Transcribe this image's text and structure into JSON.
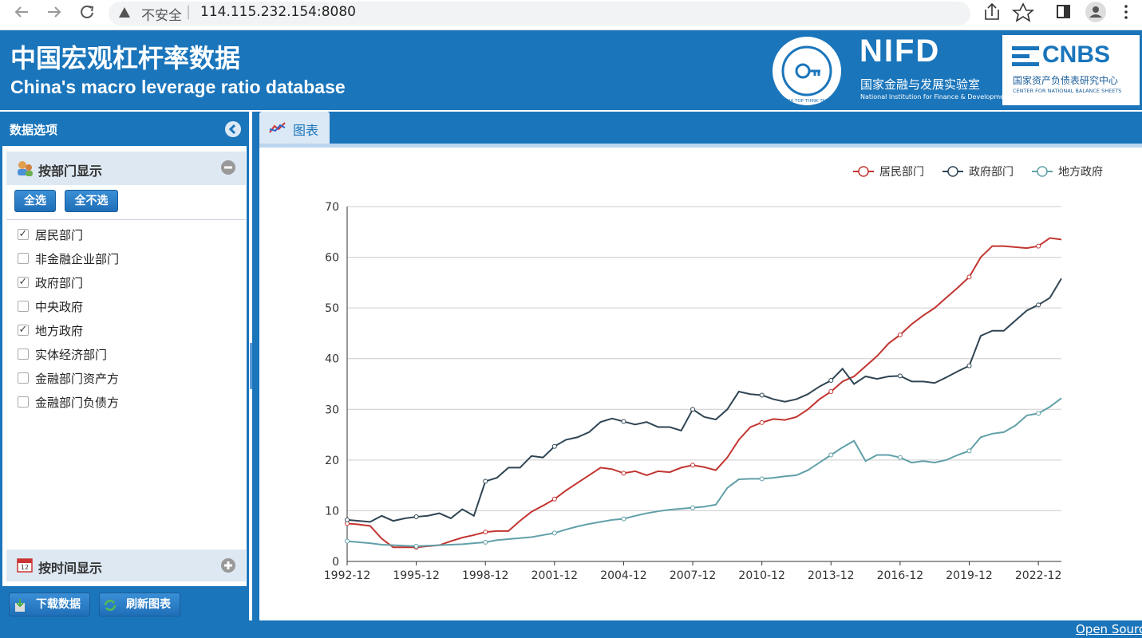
{
  "browser": {
    "security": "不安全",
    "url": "114.115.232.154:8080"
  },
  "header": {
    "title": "中国宏观杠杆率数据",
    "subtitle": "China's macro leverage ratio database",
    "think_tank": "CHINA TOP THINK TANKS",
    "nifd": {
      "name": "NIFD",
      "cn": "国家金融与发展实验室",
      "en": "National Institution for Finance & Development"
    },
    "cnbs": {
      "name": "CNBS",
      "cn": "国家资产负债表研究中心",
      "en": "CENTER FOR NATIONAL BALANCE SHEETS"
    }
  },
  "sidebar": {
    "title": "数据选项",
    "section_sector": "按部门显示",
    "select_buttons": [
      "全选",
      "全不选"
    ],
    "options": [
      {
        "label": "居民部门",
        "checked": true
      },
      {
        "label": "非金融企业部门",
        "checked": false
      },
      {
        "label": "政府部门",
        "checked": true
      },
      {
        "label": "中央政府",
        "checked": false
      },
      {
        "label": "地方政府",
        "checked": true
      },
      {
        "label": "实体经济部门",
        "checked": false
      },
      {
        "label": "金融部门资产方",
        "checked": false
      },
      {
        "label": "金融部门负债方",
        "checked": false
      }
    ],
    "section_time": "按时间显示",
    "action_buttons": [
      "下载数据",
      "刷新图表"
    ]
  },
  "tab": "图表",
  "footer": {
    "link": "Open Source"
  },
  "chart_data": {
    "type": "line",
    "categories": [
      "1992-12",
      null,
      null,
      null,
      null,
      null,
      "1995-12",
      null,
      null,
      null,
      null,
      null,
      "1998-12",
      null,
      null,
      null,
      null,
      null,
      "2001-12",
      null,
      null,
      null,
      null,
      null,
      "2004-12",
      null,
      null,
      null,
      null,
      null,
      "2007-12",
      null,
      null,
      null,
      null,
      null,
      "2010-12",
      null,
      null,
      null,
      null,
      null,
      "2013-12",
      null,
      null,
      null,
      null,
      null,
      "2016-12",
      null,
      null,
      null,
      null,
      null,
      "2019-12",
      null,
      null,
      null,
      null,
      null,
      "2022-12",
      null,
      null
    ],
    "series": [
      {
        "name": "居民部门",
        "color": "#c23531",
        "values": [
          7.5,
          7.3,
          7.0,
          4.5,
          2.8,
          2.8,
          2.8,
          3.0,
          3.2,
          4.0,
          4.7,
          5.2,
          5.8,
          6.0,
          6.0,
          8.0,
          9.8,
          11.0,
          12.3,
          14.0,
          15.5,
          17.0,
          18.5,
          18.2,
          17.4,
          17.8,
          17.0,
          17.8,
          17.6,
          18.5,
          19.0,
          18.6,
          18.0,
          20.5,
          24.0,
          26.5,
          27.4,
          28.1,
          27.9,
          28.5,
          30.0,
          32.0,
          33.5,
          35.5,
          36.5,
          38.5,
          40.5,
          43.0,
          44.7,
          46.8,
          48.5,
          50.0,
          52.0,
          54.0,
          56.1,
          60.0,
          62.2,
          62.2,
          62.0,
          61.8,
          62.2,
          63.8,
          63.5
        ]
      },
      {
        "name": "政府部门",
        "color": "#2f4554",
        "values": [
          8.2,
          8.0,
          7.8,
          9.0,
          8.0,
          8.5,
          8.8,
          9.0,
          9.5,
          8.5,
          10.3,
          9.0,
          15.8,
          16.5,
          18.5,
          18.5,
          20.8,
          20.5,
          22.7,
          24.0,
          24.5,
          25.5,
          27.5,
          28.2,
          27.6,
          27.0,
          27.5,
          26.5,
          26.5,
          25.8,
          30.0,
          28.5,
          28.0,
          30.0,
          33.5,
          33.0,
          32.8,
          32.0,
          31.5,
          32.0,
          33.0,
          34.5,
          35.7,
          38.0,
          35.0,
          36.5,
          36.0,
          36.5,
          36.6,
          35.5,
          35.5,
          35.2,
          36.3,
          37.5,
          38.6,
          44.5,
          45.5,
          45.5,
          47.5,
          49.5,
          50.6,
          52.0,
          55.8
        ]
      },
      {
        "name": "地方政府",
        "color": "#61a0a8",
        "values": [
          4.0,
          3.8,
          3.6,
          3.3,
          3.2,
          3.1,
          3.0,
          3.1,
          3.2,
          3.3,
          3.4,
          3.6,
          3.8,
          4.2,
          4.4,
          4.6,
          4.8,
          5.2,
          5.6,
          6.3,
          6.9,
          7.4,
          7.8,
          8.2,
          8.4,
          9.0,
          9.5,
          9.9,
          10.2,
          10.4,
          10.6,
          10.8,
          11.2,
          14.5,
          16.2,
          16.3,
          16.3,
          16.5,
          16.8,
          17.0,
          18.0,
          19.5,
          21.0,
          22.5,
          23.8,
          19.8,
          21.0,
          21.0,
          20.5,
          19.5,
          19.8,
          19.5,
          20.0,
          21.0,
          21.8,
          24.5,
          25.2,
          25.5,
          26.8,
          28.8,
          29.2,
          30.5,
          32.2
        ]
      }
    ],
    "ylim": [
      0,
      70
    ],
    "yticks": [
      0,
      10,
      20,
      30,
      40,
      50,
      60,
      70
    ],
    "grid": true,
    "legend": "top-right"
  }
}
